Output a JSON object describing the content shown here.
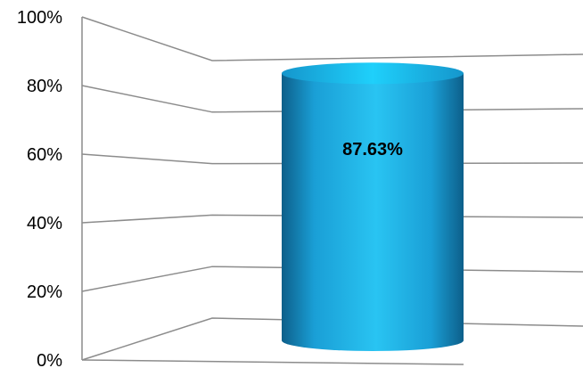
{
  "chart_data": {
    "type": "bar",
    "style": "3d-cylinder",
    "categories": [
      ""
    ],
    "values": [
      87.63
    ],
    "data_labels": [
      "87.63%"
    ],
    "title": "",
    "xlabel": "",
    "ylabel": "",
    "ylim": [
      0,
      100
    ],
    "y_ticks": [
      0,
      20,
      40,
      60,
      80,
      100
    ],
    "y_tick_labels": [
      "0%",
      "20%",
      "40%",
      "60%",
      "80%",
      "100%"
    ],
    "grid": true,
    "legend": "none",
    "colors": {
      "bar_light": "#29c4f2",
      "bar_mid": "#1a9fd6",
      "bar_dark": "#0d5f8a",
      "bar_top": "#1cc6f4",
      "grid": "#8c8c8c"
    }
  }
}
